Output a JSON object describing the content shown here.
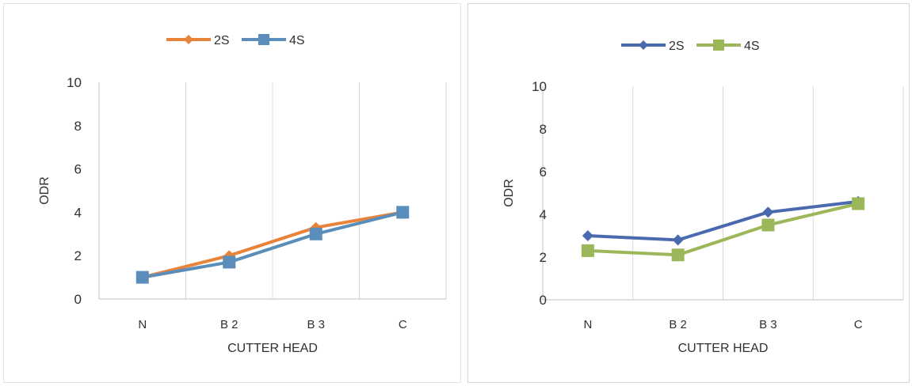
{
  "chart_data": [
    {
      "type": "line",
      "categories": [
        "N",
        "B 2",
        "B 3",
        "C"
      ],
      "series": [
        {
          "name": "2S",
          "values": [
            1.0,
            2.0,
            3.3,
            4.0
          ],
          "color": "#E8833A",
          "marker": "diamond"
        },
        {
          "name": "4S",
          "values": [
            1.0,
            1.7,
            3.0,
            4.0
          ],
          "color": "#5B8DBA",
          "marker": "square"
        }
      ],
      "xlabel": "CUTTER HEAD",
      "ylabel": "ODR",
      "ylim": [
        0,
        10
      ],
      "yticks": [
        "0",
        "2",
        "4",
        "6",
        "8",
        "10"
      ],
      "grid": "vertical",
      "legend": "top-center"
    },
    {
      "type": "line",
      "categories": [
        "N",
        "B 2",
        "B 3",
        "C"
      ],
      "series": [
        {
          "name": "2S",
          "values": [
            3.0,
            2.8,
            4.1,
            4.6
          ],
          "color": "#4A69AE",
          "marker": "diamond"
        },
        {
          "name": "4S",
          "values": [
            2.3,
            2.1,
            3.5,
            4.5
          ],
          "color": "#9BB75A",
          "marker": "square"
        }
      ],
      "xlabel": "CUTTER HEAD",
      "ylabel": "ODR",
      "ylim": [
        0,
        10
      ],
      "yticks": [
        "0",
        "2",
        "4",
        "6",
        "8",
        "10"
      ],
      "grid": "vertical",
      "legend": "top-center"
    }
  ]
}
